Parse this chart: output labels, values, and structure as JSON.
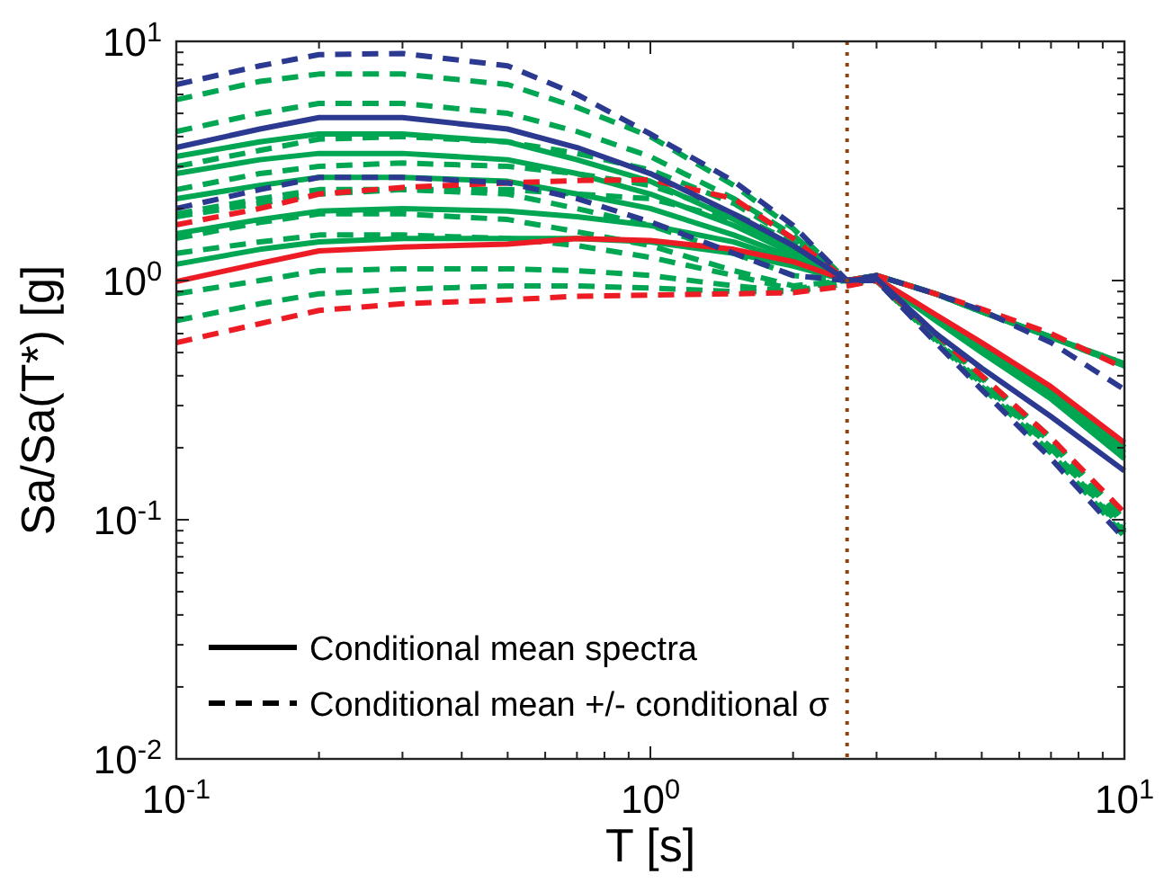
{
  "chart_data": {
    "type": "line",
    "xlabel": "T [s]",
    "ylabel": "Sa/Sa(T*) [g]",
    "log": "xy",
    "grid": false,
    "xlim": [
      0.1,
      10
    ],
    "ylim": [
      0.01,
      10
    ],
    "xticks": [
      {
        "value": 0.1,
        "label": "10$^{-1}$"
      },
      {
        "value": 0.2,
        "label": null
      },
      {
        "value": 0.3,
        "label": null
      },
      {
        "value": 0.4,
        "label": null
      },
      {
        "value": 0.5,
        "label": null
      },
      {
        "value": 0.6,
        "label": null
      },
      {
        "value": 0.7,
        "label": null
      },
      {
        "value": 0.8,
        "label": null
      },
      {
        "value": 0.9,
        "label": null
      },
      {
        "value": 1,
        "label": "10$^{0}$"
      },
      {
        "value": 2,
        "label": null
      },
      {
        "value": 3,
        "label": null
      },
      {
        "value": 4,
        "label": null
      },
      {
        "value": 5,
        "label": null
      },
      {
        "value": 6,
        "label": null
      },
      {
        "value": 7,
        "label": null
      },
      {
        "value": 8,
        "label": null
      },
      {
        "value": 9,
        "label": null
      },
      {
        "value": 10,
        "label": "10$^{1}$"
      }
    ],
    "yticks": [
      {
        "value": 0.01,
        "label": "10$^{-2}$"
      },
      {
        "value": 0.02,
        "label": null
      },
      {
        "value": 0.03,
        "label": null
      },
      {
        "value": 0.04,
        "label": null
      },
      {
        "value": 0.05,
        "label": null
      },
      {
        "value": 0.06,
        "label": null
      },
      {
        "value": 0.07,
        "label": null
      },
      {
        "value": 0.08,
        "label": null
      },
      {
        "value": 0.09,
        "label": null
      },
      {
        "value": 0.1,
        "label": "10$^{-1}$"
      },
      {
        "value": 0.2,
        "label": null
      },
      {
        "value": 0.3,
        "label": null
      },
      {
        "value": 0.4,
        "label": null
      },
      {
        "value": 0.5,
        "label": null
      },
      {
        "value": 0.6,
        "label": null
      },
      {
        "value": 0.7,
        "label": null
      },
      {
        "value": 0.8,
        "label": null
      },
      {
        "value": 0.9,
        "label": null
      },
      {
        "value": 1,
        "label": "10$^{0}$"
      },
      {
        "value": 2,
        "label": null
      },
      {
        "value": 3,
        "label": null
      },
      {
        "value": 4,
        "label": null
      },
      {
        "value": 5,
        "label": null
      },
      {
        "value": 6,
        "label": null
      },
      {
        "value": 7,
        "label": null
      },
      {
        "value": 8,
        "label": null
      },
      {
        "value": 9,
        "label": null
      },
      {
        "value": 10,
        "label": "10$^{1}$"
      }
    ],
    "x": [
      0.1,
      0.15,
      0.2,
      0.3,
      0.5,
      0.7,
      1,
      1.5,
      2,
      2.6,
      3,
      4,
      5,
      7,
      10
    ],
    "marker": "none",
    "series": [
      {
        "color": "#00a651",
        "line_style": "dashed",
        "values": [
          5.7,
          6.8,
          7.3,
          7.3,
          6.6,
          5.3,
          4.0,
          2.5,
          1.65,
          1.0,
          1.05,
          0.88,
          0.74,
          0.58,
          0.45
        ]
      },
      {
        "color": "#00a651",
        "line_style": "dashed",
        "values": [
          4.2,
          5.0,
          5.5,
          5.5,
          5.0,
          4.2,
          3.3,
          2.2,
          1.55,
          1.0,
          1.05,
          0.88,
          0.74,
          0.58,
          0.45
        ]
      },
      {
        "color": "#00a651",
        "line_style": "dashed",
        "values": [
          3.0,
          3.5,
          3.9,
          4.0,
          3.8,
          3.4,
          2.9,
          2.1,
          1.5,
          1.0,
          1.05,
          0.88,
          0.74,
          0.58,
          0.44
        ]
      },
      {
        "color": "#00a651",
        "line_style": "dashed",
        "values": [
          2.4,
          2.8,
          3.0,
          3.1,
          3.0,
          2.8,
          2.5,
          1.9,
          1.45,
          1.0,
          1.05,
          0.88,
          0.74,
          0.58,
          0.44
        ]
      },
      {
        "color": "#00a651",
        "line_style": "dashed",
        "values": [
          1.85,
          2.1,
          2.3,
          2.4,
          2.4,
          2.3,
          2.2,
          1.8,
          1.4,
          1.0,
          1.05,
          0.88,
          0.74,
          0.58,
          0.44
        ]
      },
      {
        "color": "#00a651",
        "line_style": "dashed",
        "values": [
          1.9,
          2.2,
          2.4,
          2.4,
          2.3,
          2.0,
          1.7,
          1.3,
          1.05,
          1.0,
          1.0,
          0.56,
          0.36,
          0.19,
          0.085
        ]
      },
      {
        "color": "#00a651",
        "line_style": "dashed",
        "values": [
          1.5,
          1.75,
          1.9,
          1.9,
          1.8,
          1.6,
          1.4,
          1.1,
          0.95,
          1.0,
          1.0,
          0.57,
          0.37,
          0.2,
          0.088
        ]
      },
      {
        "color": "#00a651",
        "line_style": "dashed",
        "values": [
          1.3,
          1.45,
          1.55,
          1.55,
          1.5,
          1.4,
          1.25,
          1.05,
          0.92,
          1.0,
          1.0,
          0.58,
          0.38,
          0.2,
          0.09
        ]
      },
      {
        "color": "#00a651",
        "line_style": "dashed",
        "values": [
          0.88,
          1.0,
          1.1,
          1.12,
          1.12,
          1.1,
          1.05,
          0.95,
          0.9,
          1.0,
          1.0,
          0.59,
          0.39,
          0.21,
          0.095
        ]
      },
      {
        "color": "#00a651",
        "line_style": "dashed",
        "values": [
          0.68,
          0.8,
          0.88,
          0.92,
          0.95,
          0.95,
          0.93,
          0.9,
          0.9,
          0.97,
          1.0,
          0.6,
          0.4,
          0.22,
          0.1
        ]
      },
      {
        "color": "#00a651",
        "line_style": "solid",
        "values": [
          3.3,
          3.8,
          4.1,
          4.1,
          3.8,
          3.2,
          2.6,
          1.8,
          1.35,
          1.0,
          1.02,
          0.68,
          0.5,
          0.32,
          0.18
        ]
      },
      {
        "color": "#00a651",
        "line_style": "solid",
        "values": [
          2.8,
          3.2,
          3.4,
          3.4,
          3.2,
          2.8,
          2.3,
          1.7,
          1.3,
          1.0,
          1.02,
          0.69,
          0.51,
          0.33,
          0.19
        ]
      },
      {
        "color": "#00a651",
        "line_style": "solid",
        "values": [
          2.2,
          2.5,
          2.7,
          2.7,
          2.6,
          2.3,
          2.0,
          1.55,
          1.25,
          1.0,
          1.02,
          0.7,
          0.52,
          0.34,
          0.2
        ]
      },
      {
        "color": "#00a651",
        "line_style": "solid",
        "values": [
          1.57,
          1.8,
          1.95,
          2.0,
          1.95,
          1.85,
          1.7,
          1.45,
          1.2,
          1.0,
          1.02,
          0.7,
          0.52,
          0.34,
          0.2
        ]
      },
      {
        "color": "#00a651",
        "line_style": "solid",
        "values": [
          1.17,
          1.35,
          1.45,
          1.5,
          1.5,
          1.5,
          1.45,
          1.3,
          1.15,
          1.0,
          1.02,
          0.71,
          0.53,
          0.35,
          0.2
        ]
      },
      {
        "color": "#ed1c24",
        "line_style": "dashed",
        "values": [
          1.71,
          2.0,
          2.3,
          2.45,
          2.56,
          2.62,
          2.64,
          2.2,
          1.5,
          1.0,
          1.05,
          0.88,
          0.76,
          0.6,
          0.43
        ]
      },
      {
        "color": "#ed1c24",
        "line_style": "dashed",
        "values": [
          0.55,
          0.66,
          0.75,
          0.8,
          0.83,
          0.86,
          0.87,
          0.88,
          0.89,
          0.95,
          1.0,
          0.6,
          0.4,
          0.22,
          0.107
        ]
      },
      {
        "color": "#ed1c24",
        "line_style": "solid",
        "values": [
          0.99,
          1.18,
          1.33,
          1.38,
          1.42,
          1.5,
          1.47,
          1.35,
          1.2,
          1.0,
          1.02,
          0.72,
          0.55,
          0.36,
          0.21
        ]
      },
      {
        "color": "#2b3990",
        "line_style": "dashed",
        "values": [
          6.6,
          7.9,
          8.8,
          8.9,
          7.9,
          6.0,
          4.1,
          2.6,
          1.7,
          1.0,
          1.05,
          0.88,
          0.75,
          0.55,
          0.35
        ]
      },
      {
        "color": "#2b3990",
        "line_style": "dashed",
        "values": [
          2.0,
          2.4,
          2.7,
          2.7,
          2.56,
          2.2,
          1.76,
          1.3,
          1.05,
          1.0,
          1.0,
          0.55,
          0.35,
          0.18,
          0.083
        ]
      },
      {
        "color": "#2b3990",
        "line_style": "solid",
        "values": [
          3.6,
          4.3,
          4.8,
          4.8,
          4.3,
          3.6,
          2.8,
          1.9,
          1.4,
          1.0,
          1.02,
          0.6,
          0.43,
          0.27,
          0.16
        ]
      }
    ],
    "ref_lines": [
      {
        "axis": "x",
        "value": 2.6,
        "color": "#8b4513",
        "line_style": "dotted"
      }
    ],
    "annotations": [
      "Conditional mean spectra",
      "Conditional mean +/- conditional σ"
    ]
  }
}
